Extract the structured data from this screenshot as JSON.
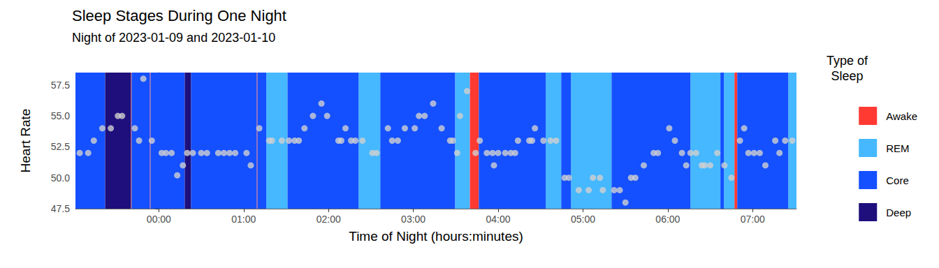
{
  "chart_data": {
    "type": "scatter",
    "title": "Sleep Stages During One Night",
    "subtitle": "Night of 2023-01-09 and 2023-01-10",
    "x_label": "Time of Night (hours:minutes)",
    "y_label": "Heart Rate",
    "legend_title": "Type of\nSleep",
    "legend": "right",
    "grid": false,
    "color": "#d0d0d0",
    "xlim": [
      -59,
      451
    ],
    "xticks": [
      {
        "value": 0,
        "label": "00:00"
      },
      {
        "value": 60,
        "label": "01:00"
      },
      {
        "value": 120,
        "label": "02:00"
      },
      {
        "value": 180,
        "label": "03:00"
      },
      {
        "value": 240,
        "label": "04:00"
      },
      {
        "value": 300,
        "label": "05:00"
      },
      {
        "value": 360,
        "label": "06:00"
      },
      {
        "value": 420,
        "label": "07:00"
      }
    ],
    "ylim": [
      47.5,
      58.5
    ],
    "yticks": [
      47.5,
      {
        "value": 50,
        "label": "50.0"
      },
      52.5,
      {
        "value": 55,
        "label": "55.0"
      },
      57.5
    ],
    "x": [
      -56,
      -50,
      -46,
      -40,
      -34,
      -29,
      -26,
      -17,
      -14,
      -11,
      -5,
      2,
      5,
      9,
      13,
      17,
      20,
      24,
      30,
      34,
      42,
      46,
      50,
      54,
      62,
      65,
      71,
      78,
      80,
      87,
      92,
      96,
      99,
      103,
      109,
      115,
      119,
      127,
      129,
      132,
      136,
      139,
      144,
      151,
      154,
      162,
      165,
      169,
      174,
      181,
      184,
      188,
      194,
      200,
      206,
      208,
      211,
      213,
      218,
      224,
      227,
      232,
      236,
      237,
      240,
      245,
      249,
      252,
      254,
      262,
      264,
      266,
      272,
      277,
      281,
      287,
      290,
      297,
      304,
      307,
      312,
      314,
      322,
      326,
      330,
      334,
      337,
      343,
      350,
      353,
      361,
      365,
      370,
      373,
      376,
      380,
      384,
      386,
      390,
      395,
      400,
      405,
      411,
      414,
      417,
      421,
      425,
      429,
      436,
      439,
      443,
      448
    ],
    "values": [
      52,
      52,
      53,
      54,
      54,
      55,
      55,
      54,
      53,
      58,
      53,
      52,
      52,
      52,
      50.2,
      51,
      52,
      52,
      52,
      52,
      52,
      52,
      52,
      52,
      52,
      51,
      54,
      53,
      53,
      53,
      53,
      53,
      53,
      54,
      55,
      56,
      55,
      53,
      53,
      54,
      53,
      53,
      53,
      52,
      52,
      54,
      53,
      53,
      54,
      54,
      55,
      55,
      56,
      54,
      53,
      53,
      52,
      55,
      57,
      52,
      53,
      52,
      52,
      51,
      52,
      52,
      52,
      52,
      53,
      53,
      53,
      54,
      53,
      53,
      53,
      50,
      50,
      49,
      49,
      50,
      50,
      49,
      49,
      49,
      48,
      50,
      50,
      51,
      52,
      52,
      54,
      53,
      52,
      51,
      52,
      52,
      51,
      51,
      51,
      52,
      51,
      50,
      53,
      54,
      52,
      52,
      52,
      51,
      53,
      52,
      53,
      53
    ],
    "stages": [
      {
        "name": "Awake",
        "color": "#ff3a33"
      },
      {
        "name": "REM",
        "color": "#45b8ff"
      },
      {
        "name": "Core",
        "color": "#1450ff"
      },
      {
        "name": "Deep",
        "color": "#1e0f7c"
      }
    ],
    "segments": [
      {
        "start": -59,
        "end": -38,
        "stage": "Core"
      },
      {
        "start": -38,
        "end": -19.8,
        "stage": "Deep"
      },
      {
        "start": -19.8,
        "end": -19.3,
        "stage": "Awake"
      },
      {
        "start": -19.3,
        "end": -6.4,
        "stage": "Core"
      },
      {
        "start": -6.4,
        "end": -5.9,
        "stage": "Awake"
      },
      {
        "start": -5.9,
        "end": 18.3,
        "stage": "Core"
      },
      {
        "start": 18.3,
        "end": 22.7,
        "stage": "Deep"
      },
      {
        "start": 22.7,
        "end": 69.2,
        "stage": "Core"
      },
      {
        "start": 69.2,
        "end": 69.7,
        "stage": "Awake"
      },
      {
        "start": 69.7,
        "end": 76,
        "stage": "Core"
      },
      {
        "start": 76,
        "end": 91,
        "stage": "REM"
      },
      {
        "start": 91,
        "end": 141.3,
        "stage": "Core"
      },
      {
        "start": 141.3,
        "end": 156.6,
        "stage": "REM"
      },
      {
        "start": 156.6,
        "end": 209.5,
        "stage": "Core"
      },
      {
        "start": 209.5,
        "end": 219.9,
        "stage": "REM"
      },
      {
        "start": 219.9,
        "end": 226.3,
        "stage": "Awake"
      },
      {
        "start": 226.3,
        "end": 273.7,
        "stage": "Core"
      },
      {
        "start": 273.7,
        "end": 284.6,
        "stage": "REM"
      },
      {
        "start": 284.6,
        "end": 291.5,
        "stage": "Core"
      },
      {
        "start": 291.5,
        "end": 320.2,
        "stage": "REM"
      },
      {
        "start": 320.2,
        "end": 376,
        "stage": "Core"
      },
      {
        "start": 376,
        "end": 397.2,
        "stage": "REM"
      },
      {
        "start": 397.2,
        "end": 399.7,
        "stage": "Core"
      },
      {
        "start": 399.7,
        "end": 407.1,
        "stage": "REM"
      },
      {
        "start": 407.1,
        "end": 409.1,
        "stage": "Awake"
      },
      {
        "start": 409.1,
        "end": 445.2,
        "stage": "Core"
      },
      {
        "start": 445.2,
        "end": 451,
        "stage": "REM"
      }
    ]
  }
}
